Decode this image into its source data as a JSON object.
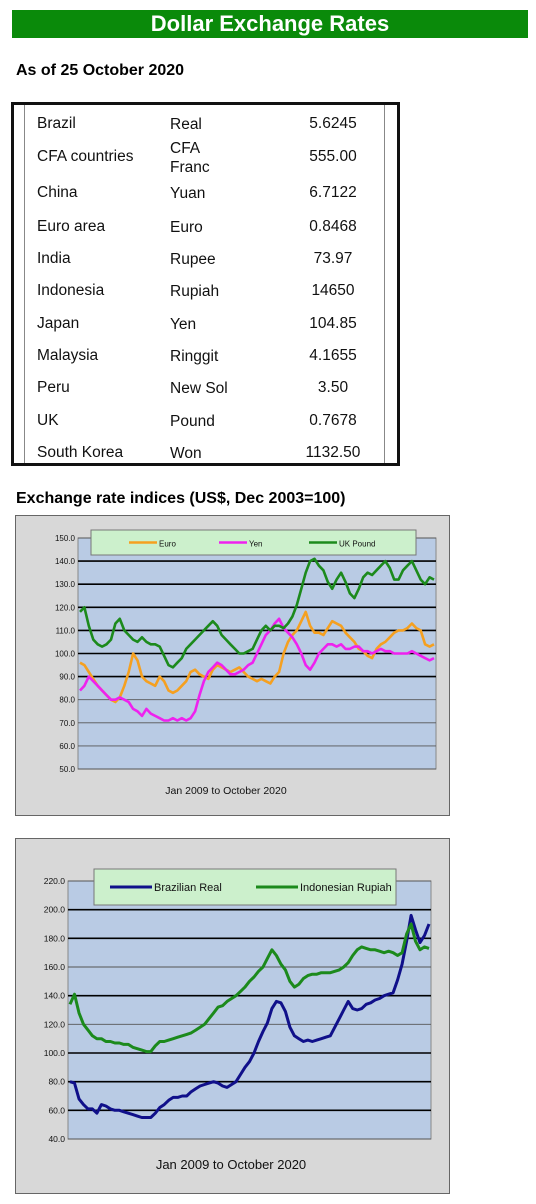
{
  "header": {
    "title": "Dollar Exchange Rates"
  },
  "as_of": "As of 25 October 2020",
  "rates": [
    {
      "country": "Brazil",
      "currency": "Real",
      "rate": "5.6245"
    },
    {
      "country": "CFA countries",
      "currency": "CFA Franc",
      "rate": "555.00"
    },
    {
      "country": "China",
      "currency": "Yuan",
      "rate": "6.7122"
    },
    {
      "country": "Euro area",
      "currency": "Euro",
      "rate": "0.8468"
    },
    {
      "country": "India",
      "currency": "Rupee",
      "rate": "73.97"
    },
    {
      "country": "Indonesia",
      "currency": "Rupiah",
      "rate": "14650"
    },
    {
      "country": "Japan",
      "currency": "Yen",
      "rate": "104.85"
    },
    {
      "country": "Malaysia",
      "currency": "Ringgit",
      "rate": "4.1655"
    },
    {
      "country": "Peru",
      "currency": "New Sol",
      "rate": "3.50"
    },
    {
      "country": "UK",
      "currency": "Pound",
      "rate": "0.7678"
    },
    {
      "country": "South Korea",
      "currency": "Won",
      "rate": "1132.50"
    }
  ],
  "section_title": "Exchange rate indices (US$, Dec 2003=100)",
  "chart_data": [
    {
      "type": "line",
      "title": "",
      "xlabel": "Jan 2009  to October 2020",
      "ylabel": "",
      "ylim": [
        50,
        150
      ],
      "yticks": [
        "50.0",
        "60.0",
        "70.0",
        "80.0",
        "90.0",
        "100.0",
        "110.0",
        "120.0",
        "130.0",
        "140.0",
        "150.0"
      ],
      "grid": true,
      "legend": "top",
      "series": [
        {
          "name": "Euro",
          "color": "#f5a020",
          "values": [
            96,
            95,
            92,
            89,
            86,
            84,
            82,
            80,
            79,
            81,
            86,
            92,
            100,
            97,
            90,
            88,
            87,
            86,
            90,
            88,
            84,
            83,
            84,
            86,
            88,
            92,
            93,
            91,
            90,
            89,
            93,
            95,
            94,
            93,
            92,
            93,
            94,
            92,
            90,
            89,
            88,
            89,
            88,
            87,
            90,
            92,
            100,
            105,
            108,
            110,
            114,
            118,
            112,
            109,
            109,
            108,
            111,
            114,
            113,
            112,
            109,
            107,
            105,
            102,
            101,
            99,
            98,
            102,
            104,
            105,
            107,
            109,
            110,
            110,
            111,
            113,
            111,
            110,
            104,
            103,
            104
          ]
        },
        {
          "name": "Yen",
          "color": "#ee22ee",
          "values": [
            84,
            86,
            90,
            88,
            86,
            84,
            82,
            80,
            80,
            81,
            80,
            79,
            76,
            75,
            73,
            76,
            74,
            73,
            72,
            71,
            71,
            72,
            71,
            72,
            71,
            72,
            75,
            82,
            88,
            92,
            94,
            96,
            95,
            93,
            91,
            91,
            92,
            93,
            95,
            96,
            100,
            104,
            108,
            110,
            113,
            115,
            111,
            109,
            107,
            104,
            100,
            95,
            93,
            96,
            100,
            102,
            104,
            104,
            103,
            104,
            102,
            102,
            103,
            103,
            101,
            101,
            100,
            101,
            102,
            101,
            101,
            100,
            100,
            100,
            100,
            101,
            100,
            99,
            98,
            97,
            98
          ]
        },
        {
          "name": "UK Pound",
          "color": "#1c8a1c",
          "values": [
            118,
            120,
            112,
            106,
            104,
            103,
            104,
            106,
            113,
            115,
            110,
            108,
            106,
            105,
            107,
            105,
            104,
            104,
            103,
            99,
            95,
            94,
            96,
            98,
            102,
            104,
            106,
            108,
            110,
            112,
            114,
            112,
            108,
            106,
            104,
            102,
            100,
            100,
            101,
            102,
            106,
            110,
            112,
            110,
            112,
            112,
            111,
            113,
            116,
            121,
            128,
            135,
            140,
            141,
            138,
            136,
            131,
            128,
            132,
            135,
            131,
            126,
            124,
            128,
            133,
            135,
            134,
            136,
            138,
            140,
            137,
            132,
            132,
            136,
            138,
            140,
            136,
            132,
            130,
            133,
            132
          ]
        }
      ]
    },
    {
      "type": "line",
      "title": "",
      "xlabel": "Jan 2009  to October 2020",
      "ylabel": "",
      "ylim": [
        40,
        220
      ],
      "yticks": [
        "40.0",
        "60.0",
        "80.0",
        "100.0",
        "120.0",
        "140.0",
        "160.0",
        "180.0",
        "200.0",
        "220.0"
      ],
      "grid": true,
      "legend": "top",
      "series": [
        {
          "name": "Brazilian Real",
          "color": "#10108a",
          "values": [
            80,
            79,
            68,
            64,
            61,
            61,
            58,
            64,
            63,
            61,
            60,
            60,
            59,
            58,
            57,
            56,
            55,
            55,
            55,
            58,
            62,
            64,
            67,
            69,
            69,
            70,
            70,
            73,
            75,
            77,
            78,
            79,
            80,
            79,
            77,
            76,
            78,
            80,
            85,
            90,
            94,
            100,
            108,
            115,
            121,
            131,
            136,
            135,
            129,
            118,
            112,
            110,
            108,
            109,
            108,
            109,
            110,
            111,
            112,
            118,
            124,
            130,
            136,
            131,
            130,
            131,
            134,
            135,
            137,
            138,
            140,
            141,
            142,
            151,
            162,
            178,
            196,
            186,
            177,
            182,
            190
          ]
        },
        {
          "name": "Indonesian Rupiah",
          "color": "#1c8a1c",
          "values": [
            134,
            141,
            128,
            120,
            116,
            112,
            110,
            110,
            108,
            108,
            107,
            107,
            106,
            106,
            104,
            103,
            102,
            101,
            101,
            105,
            108,
            108,
            109,
            110,
            111,
            112,
            113,
            114,
            116,
            118,
            120,
            124,
            128,
            132,
            133,
            136,
            138,
            140,
            143,
            146,
            150,
            153,
            157,
            160,
            166,
            172,
            168,
            162,
            158,
            150,
            146,
            148,
            152,
            154,
            155,
            155,
            156,
            156,
            156,
            157,
            158,
            160,
            163,
            168,
            172,
            174,
            173,
            172,
            172,
            171,
            170,
            171,
            170,
            168,
            170,
            183,
            190,
            178,
            172,
            174,
            173
          ]
        }
      ]
    }
  ]
}
